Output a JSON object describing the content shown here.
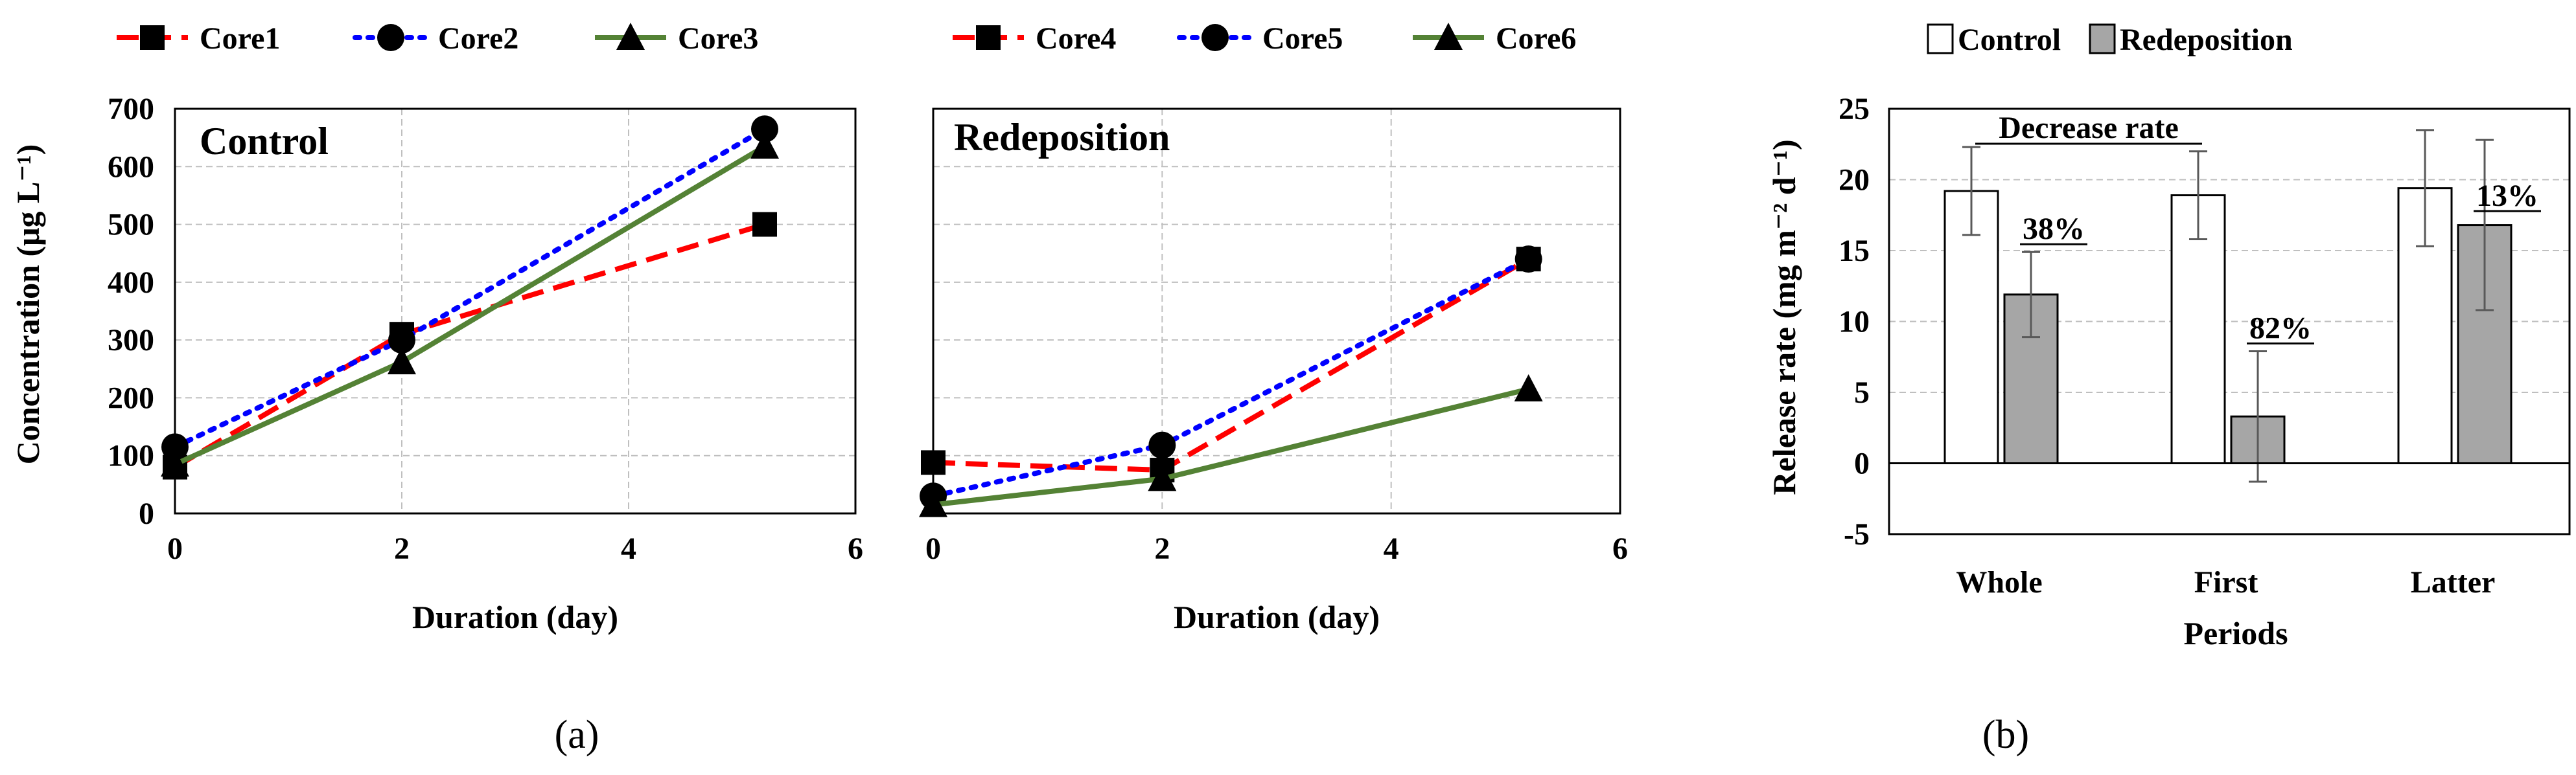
{
  "chart_data": [
    {
      "type": "line",
      "panel_label": "Control",
      "xlabel": "Duration (day)",
      "ylabel": "Concentration (μg L⁻¹)",
      "xlim": [
        0,
        6
      ],
      "ylim": [
        0,
        700
      ],
      "xticks": [
        "0",
        "2",
        "4",
        "6"
      ],
      "yticks": [
        "0",
        "100",
        "200",
        "300",
        "400",
        "500",
        "600",
        "700"
      ],
      "grid": true,
      "legend_position": "top",
      "series": [
        {
          "name": "Core1",
          "x": [
            0,
            2,
            5.2
          ],
          "y": [
            80,
            310,
            500
          ],
          "color": "#ff0000",
          "dash": "dashed",
          "marker": "square"
        },
        {
          "name": "Core2",
          "x": [
            0,
            2,
            5.2
          ],
          "y": [
            115,
            300,
            665
          ],
          "color": "#0000ff",
          "dash": "dotted",
          "marker": "circle"
        },
        {
          "name": "Core3",
          "x": [
            0,
            2,
            5.2
          ],
          "y": [
            85,
            262,
            635
          ],
          "color": "#548235",
          "dash": "solid",
          "marker": "triangle"
        }
      ],
      "caption": "(a)"
    },
    {
      "type": "line",
      "panel_label": "Redeposition",
      "xlabel": "Duration (day)",
      "ylabel": "",
      "xlim": [
        0,
        6
      ],
      "ylim": [
        0,
        700
      ],
      "xticks": [
        "0",
        "2",
        "4",
        "6"
      ],
      "yticks": [],
      "grid": true,
      "legend_position": "top",
      "series": [
        {
          "name": "Core4",
          "x": [
            0,
            2,
            5.2
          ],
          "y": [
            88,
            75,
            440
          ],
          "color": "#ff0000",
          "dash": "dashed",
          "marker": "square"
        },
        {
          "name": "Core5",
          "x": [
            0,
            2,
            5.2
          ],
          "y": [
            30,
            118,
            440
          ],
          "color": "#0000ff",
          "dash": "dotted",
          "marker": "circle"
        },
        {
          "name": "Core6",
          "x": [
            0,
            2,
            5.2
          ],
          "y": [
            15,
            60,
            215
          ],
          "color": "#548235",
          "dash": "solid",
          "marker": "triangle"
        }
      ]
    },
    {
      "type": "bar",
      "title": "",
      "xlabel": "Periods",
      "ylabel": "Release rate (mg m⁻² d⁻¹)",
      "ylim": [
        -5,
        25
      ],
      "yticks": [
        "-5",
        "0",
        "5",
        "10",
        "15",
        "20",
        "25"
      ],
      "grid": true,
      "legend_position": "top",
      "categories": [
        "Whole",
        "First",
        "Latter"
      ],
      "series": [
        {
          "name": "Control",
          "values": [
            19.2,
            18.9,
            19.4
          ],
          "errors": [
            3.1,
            3.1,
            4.1
          ],
          "color": "#ffffff"
        },
        {
          "name": "Redeposition",
          "values": [
            11.9,
            3.3,
            16.8
          ],
          "errors": [
            3.0,
            4.6,
            6.0
          ],
          "color": "#a6a6a6"
        }
      ],
      "annotation_title": "Decrease rate",
      "annotations": [
        "38%",
        "82%",
        "13%"
      ],
      "caption": "(b)"
    }
  ]
}
